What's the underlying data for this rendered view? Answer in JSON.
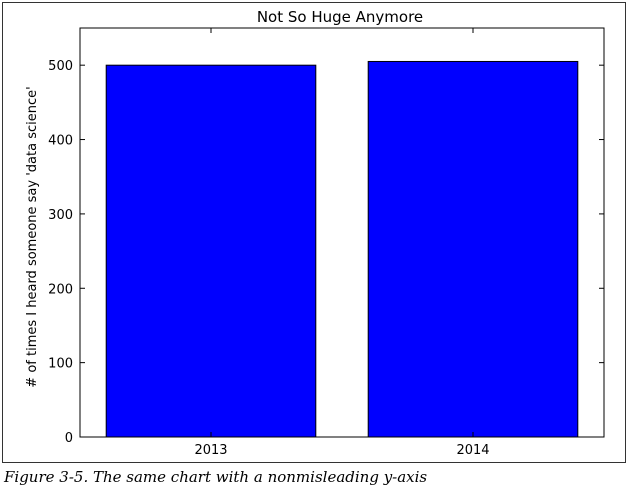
{
  "caption": "Figure 3-5. The same chart with a nonmisleading y-axis",
  "chart_data": {
    "type": "bar",
    "title": "Not So Huge Anymore",
    "xlabel": "",
    "ylabel": "# of times I heard someone say 'data science'",
    "categories": [
      "2013",
      "2014"
    ],
    "values": [
      500,
      505
    ],
    "ylim": [
      0,
      550
    ],
    "yticks": [
      0,
      100,
      200,
      300,
      400,
      500
    ],
    "grid": false,
    "colors": {
      "bar": "#0000ff",
      "edge": "#000000"
    }
  }
}
